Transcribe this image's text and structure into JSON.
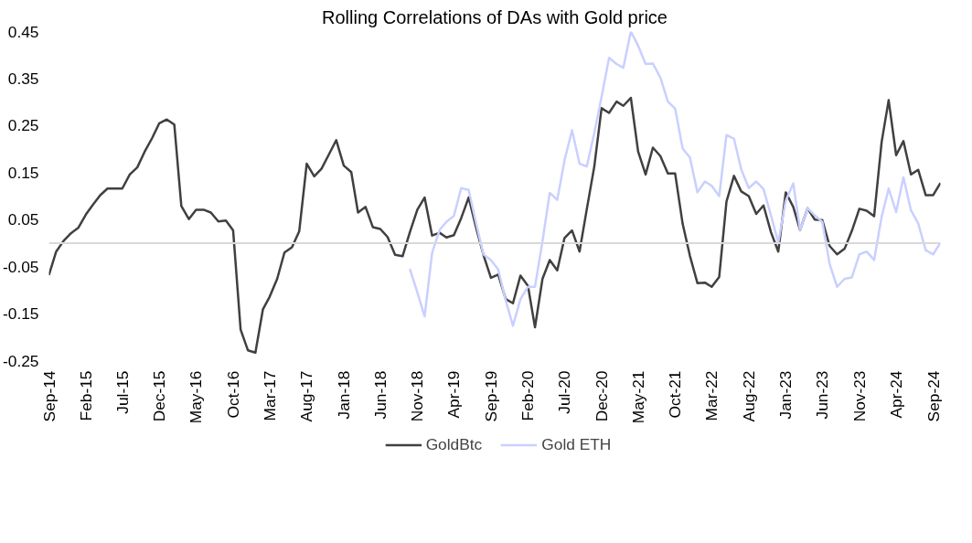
{
  "chart_data": {
    "type": "line",
    "title": "Rolling Correlations of DAs with Gold price",
    "x": [
      "2014-09",
      "2014-10",
      "2014-11",
      "2014-12",
      "2015-01",
      "2015-02",
      "2015-03",
      "2015-04",
      "2015-05",
      "2015-06",
      "2015-07",
      "2015-08",
      "2015-09",
      "2015-10",
      "2015-11",
      "2015-12",
      "2016-01",
      "2016-02",
      "2016-03",
      "2016-04",
      "2016-05",
      "2016-06",
      "2016-07",
      "2016-08",
      "2016-09",
      "2016-10",
      "2016-11",
      "2016-12",
      "2017-01",
      "2017-02",
      "2017-03",
      "2017-04",
      "2017-05",
      "2017-06",
      "2017-07",
      "2017-08",
      "2017-09",
      "2017-10",
      "2017-11",
      "2017-12",
      "2018-01",
      "2018-02",
      "2018-03",
      "2018-04",
      "2018-05",
      "2018-06",
      "2018-07",
      "2018-08",
      "2018-09",
      "2018-10",
      "2018-11",
      "2018-12",
      "2019-01",
      "2019-02",
      "2019-03",
      "2019-04",
      "2019-05",
      "2019-06",
      "2019-07",
      "2019-08",
      "2019-09",
      "2019-10",
      "2019-11",
      "2019-12",
      "2020-01",
      "2020-02",
      "2020-03",
      "2020-04",
      "2020-05",
      "2020-06",
      "2020-07",
      "2020-08",
      "2020-09",
      "2020-10",
      "2020-11",
      "2020-12",
      "2021-01",
      "2021-02",
      "2021-03",
      "2021-04",
      "2021-05",
      "2021-06",
      "2021-07",
      "2021-08",
      "2021-09",
      "2021-10",
      "2021-11",
      "2021-12",
      "2022-01",
      "2022-02",
      "2022-03",
      "2022-04",
      "2022-05",
      "2022-06",
      "2022-07",
      "2022-08",
      "2022-09",
      "2022-10",
      "2022-11",
      "2022-12",
      "2023-01",
      "2023-02",
      "2023-03",
      "2023-04",
      "2023-05",
      "2023-06",
      "2023-07",
      "2023-08",
      "2023-09",
      "2023-10",
      "2023-11",
      "2023-12",
      "2024-01",
      "2024-02",
      "2024-03",
      "2024-04",
      "2024-05",
      "2024-06",
      "2024-07",
      "2024-08",
      "2024-09",
      "2024-10"
    ],
    "series": [
      {
        "name": "GoldBtc",
        "color": "#404040",
        "values": [
          -0.068,
          -0.018,
          0.005,
          0.021,
          0.033,
          0.061,
          0.081,
          0.102,
          0.116,
          0.116,
          0.116,
          0.146,
          0.161,
          0.194,
          0.223,
          0.255,
          0.263,
          0.252,
          0.079,
          0.051,
          0.071,
          0.071,
          0.065,
          0.046,
          0.048,
          0.027,
          -0.184,
          -0.228,
          -0.233,
          -0.141,
          -0.114,
          -0.076,
          -0.02,
          -0.009,
          0.025,
          0.169,
          0.142,
          0.158,
          0.189,
          0.219,
          0.165,
          0.151,
          0.065,
          0.077,
          0.034,
          0.03,
          0.013,
          -0.025,
          -0.028,
          0.023,
          0.071,
          0.097,
          0.016,
          0.022,
          0.012,
          0.017,
          0.053,
          0.097,
          0.034,
          -0.025,
          -0.074,
          -0.067,
          -0.119,
          -0.128,
          -0.069,
          -0.091,
          -0.179,
          -0.076,
          -0.036,
          -0.058,
          0.011,
          0.027,
          -0.018,
          0.072,
          0.163,
          0.287,
          0.277,
          0.301,
          0.292,
          0.309,
          0.195,
          0.146,
          0.203,
          0.185,
          0.148,
          0.148,
          0.041,
          -0.027,
          -0.085,
          -0.084,
          -0.093,
          -0.072,
          0.088,
          0.143,
          0.11,
          0.1,
          0.062,
          0.08,
          0.023,
          -0.018,
          0.108,
          0.077,
          0.028,
          0.074,
          0.05,
          0.049,
          -0.006,
          -0.024,
          -0.012,
          0.026,
          0.073,
          0.069,
          0.057,
          0.215,
          0.304,
          0.187,
          0.217,
          0.146,
          0.156,
          0.102,
          0.102,
          0.128
        ]
      },
      {
        "name": "Gold ETH",
        "color": "#c9d0ff",
        "values": [
          null,
          null,
          null,
          null,
          null,
          null,
          null,
          null,
          null,
          null,
          null,
          null,
          null,
          null,
          null,
          null,
          null,
          null,
          null,
          null,
          null,
          null,
          null,
          null,
          null,
          null,
          null,
          null,
          null,
          null,
          null,
          null,
          null,
          null,
          null,
          null,
          null,
          null,
          null,
          null,
          null,
          null,
          null,
          null,
          null,
          null,
          null,
          null,
          null,
          -0.055,
          -0.105,
          -0.156,
          -0.021,
          0.028,
          0.045,
          0.058,
          0.117,
          0.113,
          0.044,
          -0.024,
          -0.036,
          -0.056,
          -0.122,
          -0.176,
          -0.119,
          -0.093,
          -0.093,
          0.004,
          0.107,
          0.092,
          0.176,
          0.24,
          0.169,
          0.163,
          0.234,
          0.311,
          0.394,
          0.381,
          0.373,
          0.45,
          0.42,
          0.381,
          0.382,
          0.352,
          0.301,
          0.286,
          0.201,
          0.182,
          0.108,
          0.131,
          0.122,
          0.1,
          0.23,
          0.222,
          0.157,
          0.117,
          0.131,
          0.115,
          0.059,
          0.001,
          0.09,
          0.127,
          0.028,
          0.074,
          0.059,
          0.045,
          -0.044,
          -0.093,
          -0.076,
          -0.073,
          -0.024,
          -0.018,
          -0.036,
          0.056,
          0.116,
          0.066,
          0.14,
          0.07,
          0.042,
          -0.015,
          -0.024,
          0.001
        ]
      }
    ],
    "xlim": [
      "2014-09",
      "2024-10"
    ],
    "xticks": [
      {
        "value": "2014-09",
        "label": "Sep-14"
      },
      {
        "value": "2015-02",
        "label": "Feb-15"
      },
      {
        "value": "2015-07",
        "label": "Jul-15"
      },
      {
        "value": "2015-12",
        "label": "Dec-15"
      },
      {
        "value": "2016-05",
        "label": "May-16"
      },
      {
        "value": "2016-10",
        "label": "Oct-16"
      },
      {
        "value": "2017-03",
        "label": "Mar-17"
      },
      {
        "value": "2017-08",
        "label": "Aug-17"
      },
      {
        "value": "2018-01",
        "label": "Jan-18"
      },
      {
        "value": "2018-06",
        "label": "Jun-18"
      },
      {
        "value": "2018-11",
        "label": "Nov-18"
      },
      {
        "value": "2019-04",
        "label": "Apr-19"
      },
      {
        "value": "2019-09",
        "label": "Sep-19"
      },
      {
        "value": "2020-02",
        "label": "Feb-20"
      },
      {
        "value": "2020-07",
        "label": "Jul-20"
      },
      {
        "value": "2020-12",
        "label": "Dec-20"
      },
      {
        "value": "2021-05",
        "label": "May-21"
      },
      {
        "value": "2021-10",
        "label": "Oct-21"
      },
      {
        "value": "2022-03",
        "label": "Mar-22"
      },
      {
        "value": "2022-08",
        "label": "Aug-22"
      },
      {
        "value": "2023-01",
        "label": "Jan-23"
      },
      {
        "value": "2023-06",
        "label": "Jun-23"
      },
      {
        "value": "2023-11",
        "label": "Nov-23"
      },
      {
        "value": "2024-04",
        "label": "Apr-24"
      },
      {
        "value": "2024-09",
        "label": "Sep-24"
      }
    ],
    "ylim": [
      -0.25,
      0.45
    ],
    "yticks": [
      -0.25,
      -0.15,
      -0.05,
      0.05,
      0.15,
      0.25,
      0.35,
      0.45
    ],
    "ref_lines": [
      {
        "axis": "y",
        "value": 0,
        "color": "#d9d9d9"
      }
    ],
    "grid": false,
    "legend": "bottom",
    "marker": "none",
    "line_style": "solid"
  }
}
